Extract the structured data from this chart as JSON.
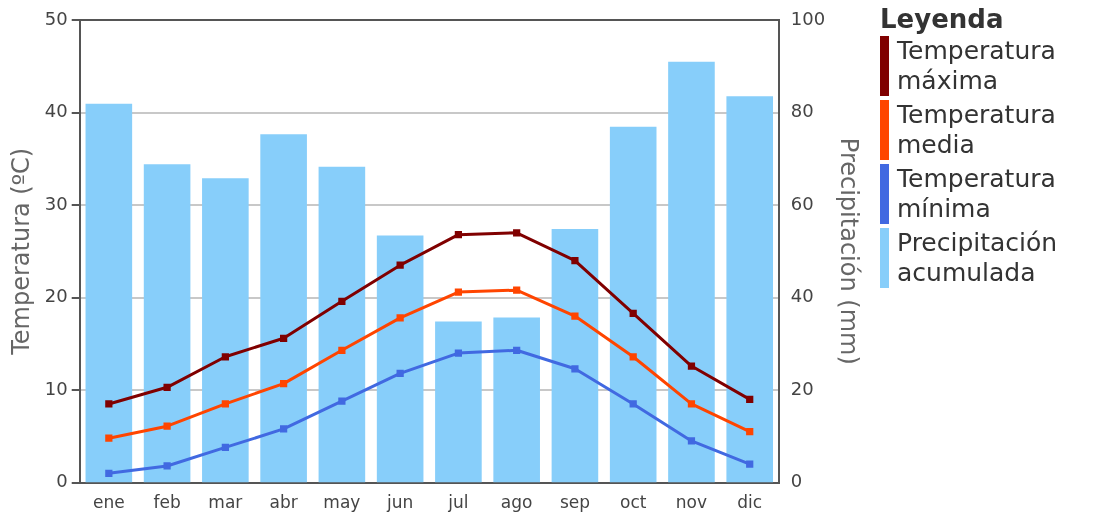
{
  "chart_data": {
    "type": "line",
    "categories": [
      "ene",
      "feb",
      "mar",
      "abr",
      "may",
      "jun",
      "jul",
      "ago",
      "sep",
      "oct",
      "nov",
      "dic"
    ],
    "ylabel": "Temperatura (ºC)",
    "y2label": "Precipitación (mm)",
    "legend_title": "Leyenda",
    "ylim": [
      0,
      50
    ],
    "yticks": [
      0,
      10,
      20,
      30,
      40,
      50
    ],
    "y2lim": [
      0,
      100
    ],
    "y2ticks": [
      0,
      20,
      40,
      60,
      80,
      100
    ],
    "grid": "y",
    "legend": "right",
    "marker": "square",
    "series": [
      {
        "name": "Temperatura máxima",
        "color": "#800000",
        "values": [
          8.5,
          10.3,
          13.6,
          15.6,
          19.6,
          23.5,
          26.8,
          27.0,
          24.0,
          18.3,
          12.6,
          9.0
        ]
      },
      {
        "name": "Temperatura media",
        "color": "#ff4500",
        "values": [
          4.8,
          6.1,
          8.5,
          10.7,
          14.3,
          17.8,
          20.6,
          20.8,
          18.0,
          13.6,
          8.5,
          5.5
        ]
      },
      {
        "name": "Temperatura mínima",
        "color": "#4169e1",
        "values": [
          1.0,
          1.8,
          3.8,
          5.8,
          8.8,
          11.8,
          14.0,
          14.3,
          12.3,
          8.5,
          4.5,
          2.0
        ]
      },
      {
        "name": "Precipitación acumulada",
        "type": "bar",
        "axis": "y2",
        "color": "#87cefa",
        "values": [
          81.9,
          68.8,
          65.8,
          75.3,
          68.3,
          53.4,
          34.8,
          35.7,
          54.8,
          76.9,
          91.0,
          83.5
        ]
      }
    ]
  }
}
